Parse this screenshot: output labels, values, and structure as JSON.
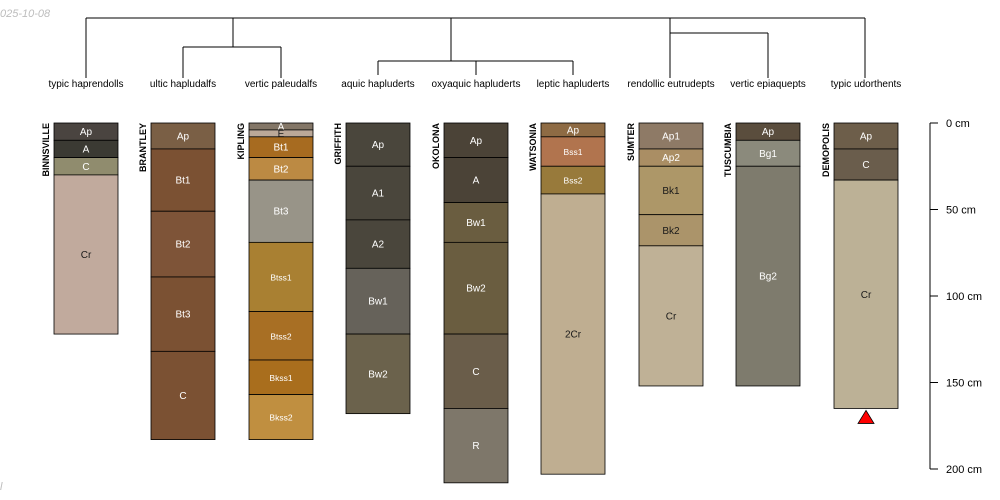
{
  "stamp": {
    "date": "025-10-08",
    "mark": "l"
  },
  "depth_axis": {
    "unit": "cm",
    "ticks": [
      0,
      50,
      100,
      150,
      200
    ],
    "tick_labels": [
      "0 cm",
      "50 cm",
      "100 cm",
      "150 cm",
      "200 cm"
    ],
    "max_depth": 200
  },
  "profiles": [
    {
      "id": "BINNSVILLE",
      "taxon": "typic haprendolls",
      "horizons": [
        {
          "name": "Ap",
          "top": 0,
          "bottom": 10,
          "color": "#4a4440"
        },
        {
          "name": "A",
          "top": 10,
          "bottom": 20,
          "color": "#3b3a33"
        },
        {
          "name": "C",
          "top": 20,
          "bottom": 30,
          "color": "#908c6e"
        },
        {
          "name": "Cr",
          "top": 30,
          "bottom": 122,
          "color": "#c1aa9d"
        }
      ]
    },
    {
      "id": "BRANTLEY",
      "taxon": "ultic hapludalfs",
      "horizons": [
        {
          "name": "Ap",
          "top": 0,
          "bottom": 15,
          "color": "#7a5f45"
        },
        {
          "name": "Bt1",
          "top": 15,
          "bottom": 51,
          "color": "#7b5133"
        },
        {
          "name": "Bt2",
          "top": 51,
          "bottom": 89,
          "color": "#7e5438"
        },
        {
          "name": "Bt3",
          "top": 89,
          "bottom": 132,
          "color": "#7b5133"
        },
        {
          "name": "C",
          "top": 132,
          "bottom": 183,
          "color": "#7b5133"
        }
      ]
    },
    {
      "id": "KIPLING",
      "taxon": "vertic paleudalfs",
      "horizons": [
        {
          "name": "A",
          "top": 0,
          "bottom": 4,
          "color": "#837667"
        },
        {
          "name": "E",
          "top": 4,
          "bottom": 8,
          "color": "#bba898"
        },
        {
          "name": "Bt1",
          "top": 8,
          "bottom": 20,
          "color": "#a76b20"
        },
        {
          "name": "Bt2",
          "top": 20,
          "bottom": 33,
          "color": "#bc8a43"
        },
        {
          "name": "Bt3",
          "top": 33,
          "bottom": 69,
          "color": "#989488"
        },
        {
          "name": "Btss1",
          "top": 69,
          "bottom": 109,
          "color": "#a98032"
        },
        {
          "name": "Btss2",
          "top": 109,
          "bottom": 137,
          "color": "#a86f24"
        },
        {
          "name": "Bkss1",
          "top": 137,
          "bottom": 157,
          "color": "#a96e1d"
        },
        {
          "name": "Bkss2",
          "top": 157,
          "bottom": 183,
          "color": "#c08f40"
        }
      ]
    },
    {
      "id": "GRIFFITH",
      "taxon": "aquic hapluderts",
      "horizons": [
        {
          "name": "Ap",
          "top": 0,
          "bottom": 25,
          "color": "#4a463c"
        },
        {
          "name": "A1",
          "top": 25,
          "bottom": 56,
          "color": "#4a463c"
        },
        {
          "name": "A2",
          "top": 56,
          "bottom": 84,
          "color": "#4a463c"
        },
        {
          "name": "Bw1",
          "top": 84,
          "bottom": 122,
          "color": "#66625a"
        },
        {
          "name": "Bw2",
          "top": 122,
          "bottom": 168,
          "color": "#6b624c"
        }
      ]
    },
    {
      "id": "OKOLONA",
      "taxon": "oxyaquic hapluderts",
      "horizons": [
        {
          "name": "Ap",
          "top": 0,
          "bottom": 20,
          "color": "#4b4337"
        },
        {
          "name": "A",
          "top": 20,
          "bottom": 46,
          "color": "#4b4337"
        },
        {
          "name": "Bw1",
          "top": 46,
          "bottom": 69,
          "color": "#6a5d40"
        },
        {
          "name": "Bw2",
          "top": 69,
          "bottom": 122,
          "color": "#6a5d40"
        },
        {
          "name": "C",
          "top": 122,
          "bottom": 165,
          "color": "#6a5d4a"
        },
        {
          "name": "R",
          "top": 165,
          "bottom": 208,
          "color": "#7e776a"
        }
      ]
    },
    {
      "id": "WATSONIA",
      "taxon": "leptic hapluderts",
      "horizons": [
        {
          "name": "Ap",
          "top": 0,
          "bottom": 8,
          "color": "#8e6b44"
        },
        {
          "name": "Bss1",
          "top": 8,
          "bottom": 25,
          "color": "#b1744e"
        },
        {
          "name": "Bss2",
          "top": 25,
          "bottom": 41,
          "color": "#987a3b"
        },
        {
          "name": "2Cr",
          "top": 41,
          "bottom": 203,
          "color": "#bfae91"
        }
      ]
    },
    {
      "id": "SUMTER",
      "taxon": "rendollic eutrudepts",
      "horizons": [
        {
          "name": "Ap1",
          "top": 0,
          "bottom": 15,
          "color": "#8e7a66"
        },
        {
          "name": "Ap2",
          "top": 15,
          "bottom": 25,
          "color": "#aa8e64"
        },
        {
          "name": "Bk1",
          "top": 25,
          "bottom": 53,
          "color": "#ad9768"
        },
        {
          "name": "Bk2",
          "top": 53,
          "bottom": 71,
          "color": "#ab946a"
        },
        {
          "name": "Cr",
          "top": 71,
          "bottom": 152,
          "color": "#bfb196"
        }
      ]
    },
    {
      "id": "TUSCUMBIA",
      "taxon": "vertic epiaquepts",
      "horizons": [
        {
          "name": "Ap",
          "top": 0,
          "bottom": 10,
          "color": "#5a4d3d"
        },
        {
          "name": "Bg1",
          "top": 10,
          "bottom": 25,
          "color": "#8b8a7c"
        },
        {
          "name": "Bg2",
          "top": 25,
          "bottom": 152,
          "color": "#7e7b6d"
        }
      ]
    },
    {
      "id": "DEMOPOLIS",
      "taxon": "typic udorthents",
      "horizons": [
        {
          "name": "Ap",
          "top": 0,
          "bottom": 15,
          "color": "#6d5e4a"
        },
        {
          "name": "C",
          "top": 15,
          "bottom": 33,
          "color": "#6a5d4c"
        },
        {
          "name": "Cr",
          "top": 33,
          "bottom": 165,
          "color": "#bcb196"
        }
      ],
      "marker": "red-triangle"
    }
  ]
}
